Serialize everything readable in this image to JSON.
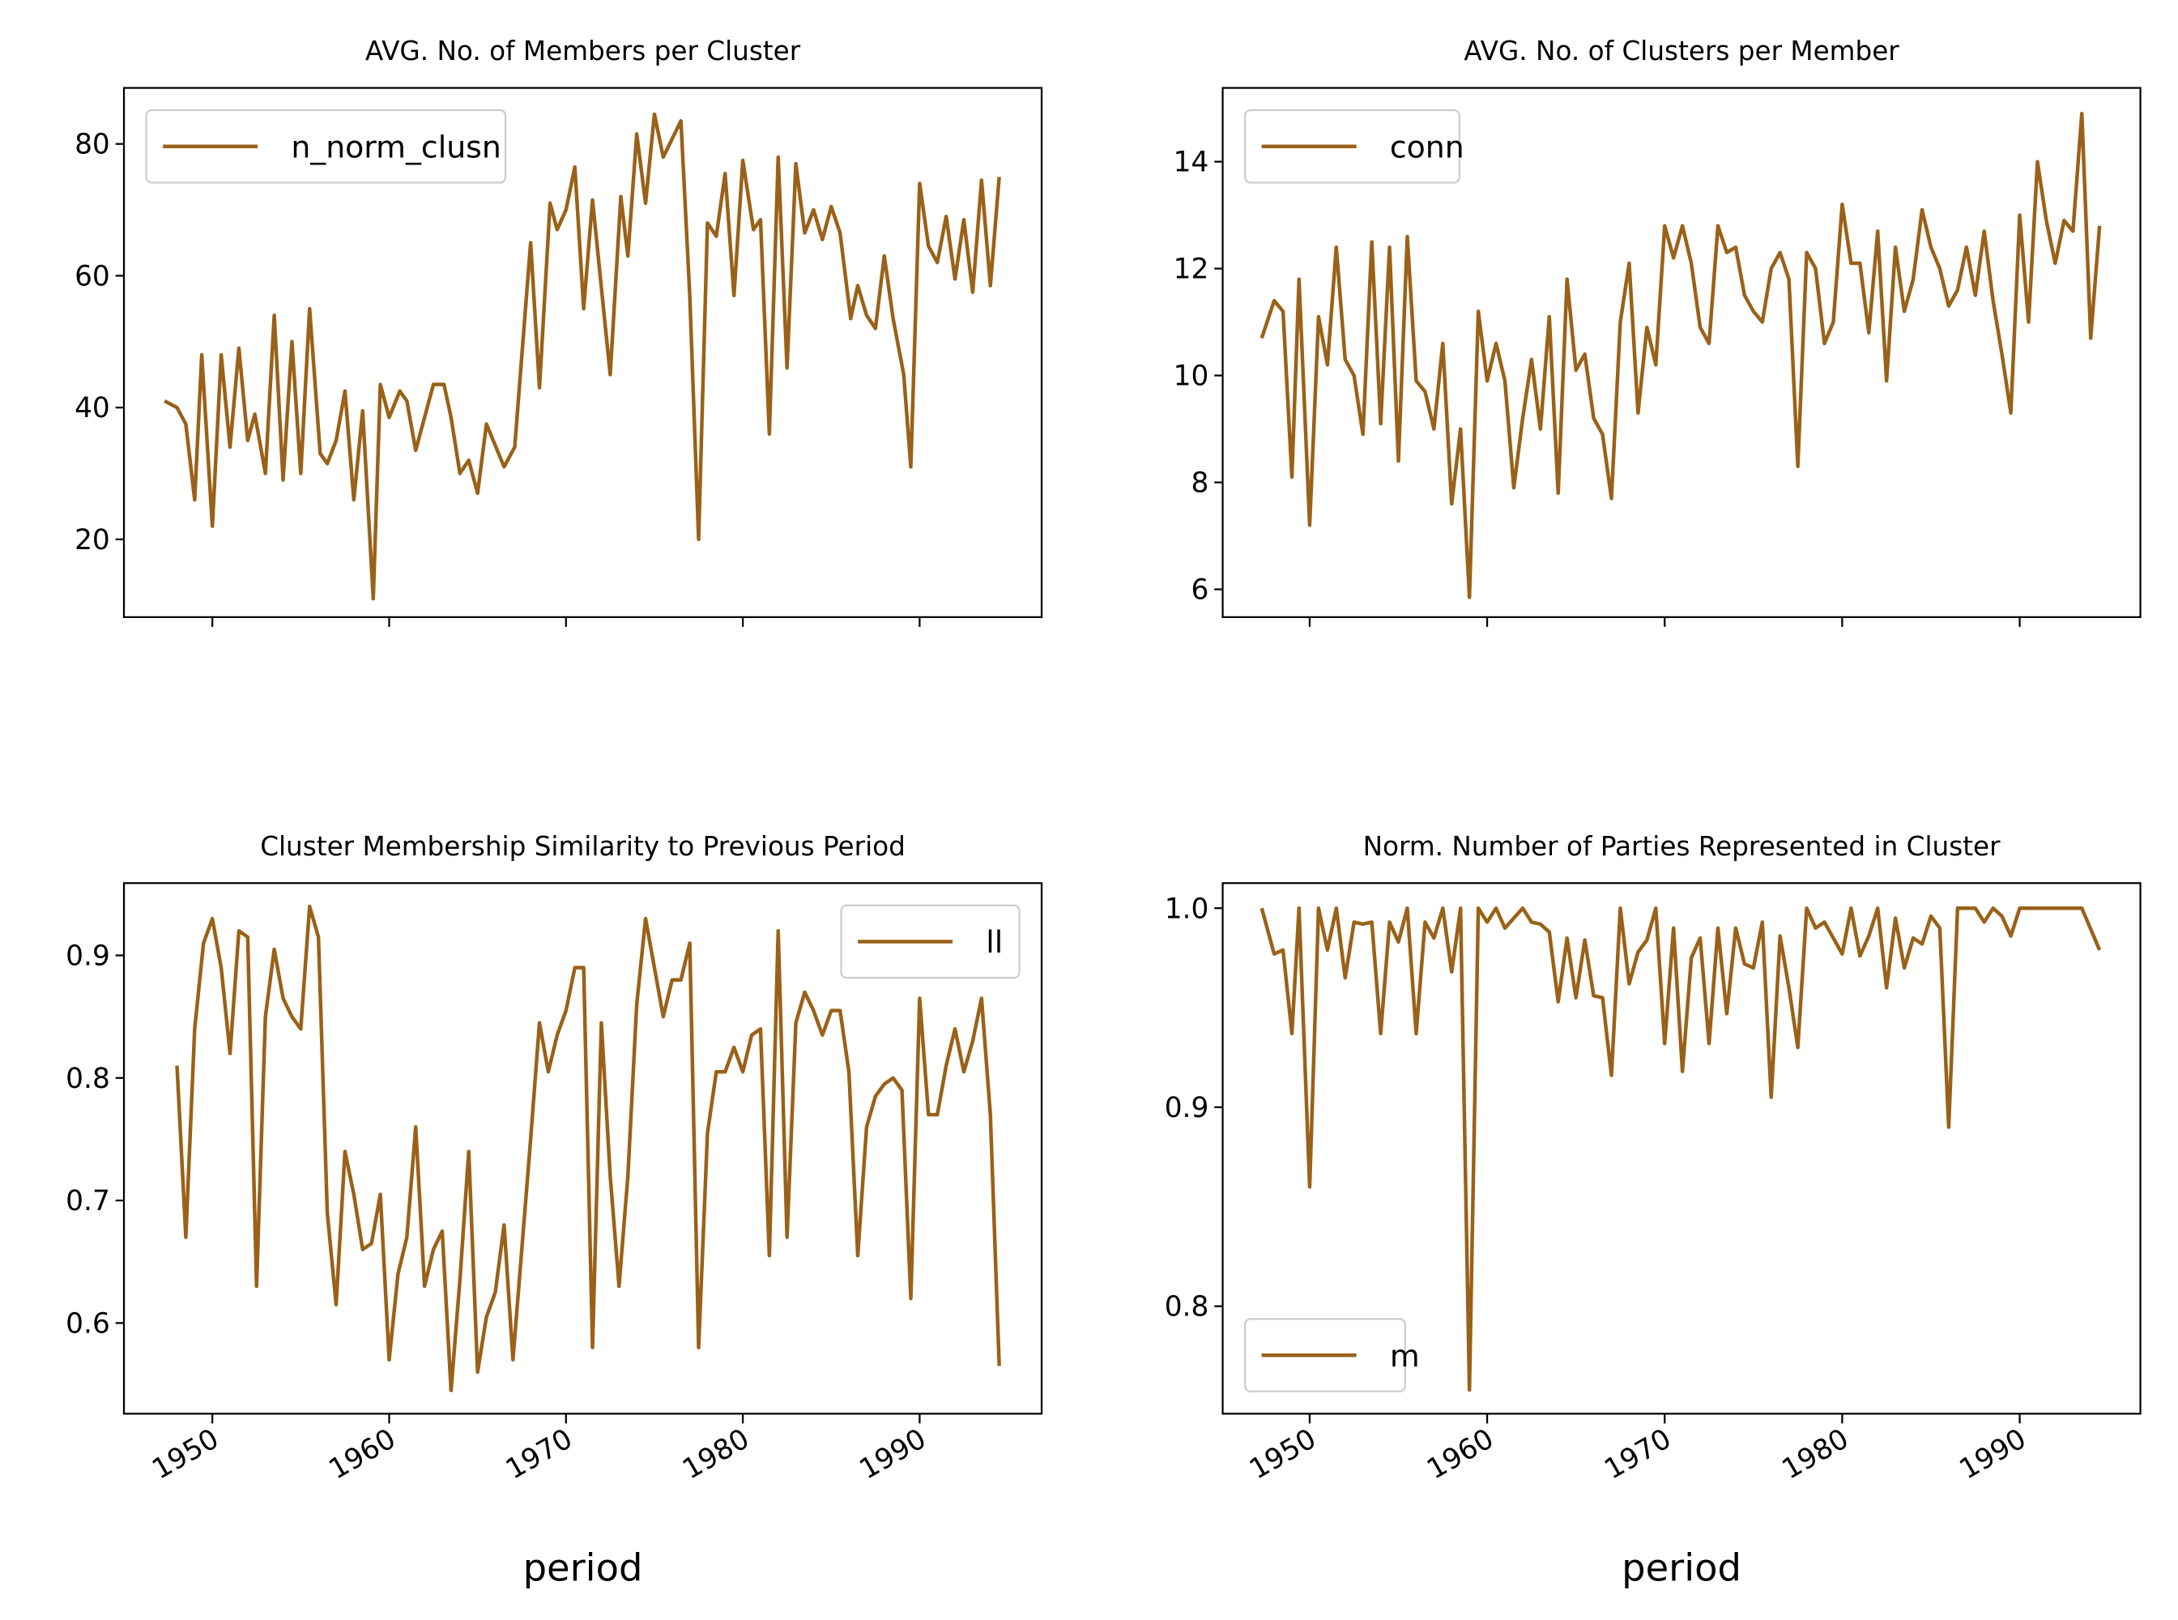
{
  "chart_data": [
    {
      "type": "line",
      "title": "AVG. No. of Members per Cluster",
      "x": [
        1947.3,
        1948.0,
        1948.5,
        1949.0,
        1949.4,
        1950.0,
        1950.5,
        1951.0,
        1951.5,
        1952.0,
        1952.4,
        1953.0,
        1953.5,
        1954.0,
        1954.5,
        1955.0,
        1955.5,
        1956.1,
        1956.5,
        1957.0,
        1957.5,
        1958.0,
        1958.5,
        1959.1,
        1959.5,
        1960.0,
        1960.6,
        1961.0,
        1961.5,
        1962.5,
        1963.1,
        1963.5,
        1964.0,
        1964.5,
        1965.0,
        1965.5,
        1966.5,
        1967.1,
        1968.0,
        1968.5,
        1969.1,
        1969.5,
        1970.0,
        1970.5,
        1971.0,
        1971.5,
        1972.5,
        1973.1,
        1973.5,
        1974.0,
        1974.5,
        1975.0,
        1975.5,
        1976.5,
        1977.0,
        1977.5,
        1978.0,
        1978.5,
        1979.0,
        1979.5,
        1980.0,
        1980.6,
        1981.0,
        1981.5,
        1982.0,
        1982.5,
        1983.0,
        1983.5,
        1984.0,
        1984.5,
        1985.0,
        1985.5,
        1986.1,
        1986.5,
        1987.0,
        1987.5,
        1988.0,
        1988.5,
        1989.1,
        1989.5,
        1990.0,
        1990.5,
        1991.0,
        1991.5,
        1992.0,
        1992.5,
        1993.0,
        1993.5,
        1994.0,
        1994.5
      ],
      "series": [
        {
          "name": "n_norm_clusn",
          "color": "#9a6118",
          "values": [
            41,
            40,
            37.5,
            26,
            48,
            22,
            48,
            34,
            49,
            35,
            39,
            30,
            54,
            29,
            50,
            30,
            55,
            33,
            31.5,
            35,
            42.5,
            26,
            39.5,
            11,
            43.5,
            38.5,
            42.5,
            41,
            33.5,
            43.5,
            43.5,
            38.5,
            30,
            32,
            27,
            37.5,
            31,
            34,
            65,
            43,
            71,
            67,
            70,
            76.5,
            55,
            71.5,
            45,
            72,
            63,
            81.5,
            71,
            84.5,
            78,
            83.5,
            57,
            20,
            68,
            66,
            75.5,
            57,
            77.5,
            67,
            68.5,
            36,
            78,
            46,
            77,
            66.5,
            70,
            65.5,
            70.5,
            66.5,
            53.5,
            58.5,
            54,
            52,
            63,
            53.5,
            45,
            31,
            74,
            64.5,
            62,
            69,
            59.5,
            68.5,
            57.5,
            74.5,
            58.5,
            75
          ]
        }
      ],
      "xlim": [
        1945.0,
        1996.9
      ],
      "ylim": [
        8.2,
        88.5
      ],
      "xticks": [
        1950,
        1960,
        1970,
        1980,
        1990
      ],
      "yticks": [
        20,
        40,
        60,
        80
      ],
      "show_xtick_labels": false,
      "legend": "upper left"
    },
    {
      "type": "line",
      "title": "AVG. No. of Clusters per Member",
      "x": [
        1947.3,
        1948.0,
        1948.5,
        1949.0,
        1949.4,
        1950.0,
        1950.5,
        1951.0,
        1951.5,
        1952.0,
        1952.5,
        1953.0,
        1953.5,
        1954.0,
        1954.5,
        1955.0,
        1955.5,
        1956.0,
        1956.5,
        1957.0,
        1957.5,
        1958.0,
        1958.5,
        1959.0,
        1959.5,
        1960.0,
        1960.5,
        1961.0,
        1961.5,
        1962.0,
        1962.5,
        1963.0,
        1963.5,
        1964.0,
        1964.5,
        1965.0,
        1965.5,
        1966.0,
        1966.5,
        1967.0,
        1967.5,
        1968.0,
        1968.5,
        1969.0,
        1969.5,
        1970.0,
        1970.5,
        1971.0,
        1971.5,
        1972.0,
        1972.5,
        1973.0,
        1973.5,
        1974.0,
        1974.5,
        1975.0,
        1975.5,
        1976.0,
        1976.5,
        1977.0,
        1977.5,
        1978.0,
        1978.5,
        1979.0,
        1979.5,
        1980.0,
        1980.5,
        1981.0,
        1981.5,
        1982.0,
        1982.5,
        1983.0,
        1983.5,
        1984.0,
        1984.5,
        1985.0,
        1985.5,
        1986.0,
        1986.5,
        1987.0,
        1987.5,
        1988.0,
        1988.5,
        1989.0,
        1989.5,
        1990.0,
        1990.5,
        1991.0,
        1991.5,
        1992.0,
        1992.5,
        1993.0,
        1993.5,
        1994.0,
        1994.5
      ],
      "series": [
        {
          "name": "conn",
          "color": "#9a6118",
          "values": [
            10.7,
            11.4,
            11.2,
            8.1,
            11.8,
            7.2,
            11.1,
            10.2,
            12.4,
            10.3,
            10.0,
            8.9,
            12.5,
            9.1,
            12.4,
            8.4,
            12.6,
            9.9,
            9.7,
            9.0,
            10.6,
            7.6,
            9.0,
            5.85,
            11.2,
            9.9,
            10.6,
            9.9,
            7.9,
            9.2,
            10.3,
            9.0,
            11.1,
            7.8,
            11.8,
            10.1,
            10.4,
            9.2,
            8.9,
            7.7,
            11.0,
            12.1,
            9.3,
            10.9,
            10.2,
            12.8,
            12.2,
            12.8,
            12.1,
            10.9,
            10.6,
            12.8,
            12.3,
            12.4,
            11.5,
            11.2,
            11.0,
            12.0,
            12.3,
            11.8,
            8.3,
            12.3,
            12.0,
            10.6,
            11.0,
            13.2,
            12.1,
            12.1,
            10.8,
            12.7,
            9.9,
            12.4,
            11.2,
            11.8,
            13.1,
            12.4,
            12.0,
            11.3,
            11.6,
            12.4,
            11.5,
            12.7,
            11.4,
            10.4,
            9.3,
            13.0,
            11.0,
            14.0,
            12.9,
            12.1,
            12.9,
            12.7,
            14.9,
            10.7,
            12.8
          ]
        }
      ],
      "xlim": [
        1945.1,
        1996.8
      ],
      "ylim": [
        5.48,
        15.38
      ],
      "xticks": [
        1950,
        1960,
        1970,
        1980,
        1990
      ],
      "yticks": [
        6,
        8,
        10,
        12,
        14
      ],
      "show_xtick_labels": false,
      "legend": "upper left"
    },
    {
      "type": "line",
      "title": "Cluster Membership Similarity to Previous Period",
      "x_label": "period",
      "x": [
        1948.0,
        1948.5,
        1949.0,
        1949.5,
        1950.0,
        1950.5,
        1951.0,
        1951.5,
        1952.0,
        1952.5,
        1953.0,
        1953.5,
        1954.0,
        1954.5,
        1955.0,
        1955.5,
        1956.0,
        1956.5,
        1957.0,
        1957.5,
        1958.0,
        1958.5,
        1959.0,
        1959.5,
        1960.0,
        1960.5,
        1961.0,
        1961.5,
        1962.0,
        1962.5,
        1963.0,
        1963.5,
        1964.0,
        1964.5,
        1965.0,
        1965.5,
        1966.0,
        1966.5,
        1967.0,
        1967.5,
        1968.0,
        1968.5,
        1969.0,
        1969.5,
        1970.0,
        1970.5,
        1971.0,
        1971.5,
        1972.0,
        1972.5,
        1973.0,
        1973.5,
        1974.0,
        1974.5,
        1975.0,
        1975.5,
        1976.0,
        1976.5,
        1977.0,
        1977.5,
        1978.0,
        1978.5,
        1979.0,
        1979.5,
        1980.0,
        1980.5,
        1981.0,
        1981.5,
        1982.0,
        1982.5,
        1983.0,
        1983.5,
        1984.0,
        1984.5,
        1985.0,
        1985.5,
        1986.0,
        1986.5,
        1987.0,
        1987.5,
        1988.0,
        1988.5,
        1989.0,
        1989.5,
        1990.0,
        1990.5,
        1991.0,
        1991.5,
        1992.0,
        1992.5,
        1993.0,
        1993.5,
        1994.0,
        1994.5
      ],
      "series": [
        {
          "name": "ll",
          "color": "#9a6118",
          "values": [
            0.81,
            0.67,
            0.84,
            0.91,
            0.93,
            0.89,
            0.82,
            0.92,
            0.915,
            0.63,
            0.85,
            0.905,
            0.865,
            0.85,
            0.84,
            0.94,
            0.915,
            0.69,
            0.615,
            0.74,
            0.705,
            0.66,
            0.665,
            0.705,
            0.57,
            0.64,
            0.67,
            0.76,
            0.63,
            0.66,
            0.675,
            0.545,
            0.635,
            0.74,
            0.56,
            0.605,
            0.625,
            0.68,
            0.57,
            0.66,
            0.75,
            0.845,
            0.805,
            0.835,
            0.855,
            0.89,
            0.89,
            0.58,
            0.845,
            0.72,
            0.63,
            0.72,
            0.86,
            0.93,
            0.89,
            0.85,
            0.88,
            0.88,
            0.91,
            0.58,
            0.755,
            0.805,
            0.805,
            0.825,
            0.805,
            0.835,
            0.84,
            0.655,
            0.92,
            0.67,
            0.845,
            0.87,
            0.855,
            0.835,
            0.855,
            0.855,
            0.805,
            0.655,
            0.76,
            0.785,
            0.795,
            0.8,
            0.79,
            0.62,
            0.865,
            0.77,
            0.77,
            0.81,
            0.84,
            0.805,
            0.83,
            0.865,
            0.77,
            0.565
          ]
        }
      ],
      "xlim": [
        1945.0,
        1996.9
      ],
      "ylim": [
        0.526,
        0.959
      ],
      "xticks": [
        1950,
        1960,
        1970,
        1980,
        1990
      ],
      "yticks": [
        0.6,
        0.7,
        0.8,
        0.9
      ],
      "show_xtick_labels": true,
      "legend": "upper right"
    },
    {
      "type": "line",
      "title": "Norm. Number of Parties Represented in Cluster",
      "x_label": "period",
      "x": [
        1947.3,
        1948.0,
        1948.5,
        1949.0,
        1949.4,
        1950.0,
        1950.5,
        1951.0,
        1951.5,
        1952.0,
        1952.5,
        1953.0,
        1953.5,
        1954.0,
        1954.5,
        1955.0,
        1955.5,
        1956.0,
        1956.5,
        1957.0,
        1957.5,
        1958.0,
        1958.5,
        1959.0,
        1959.5,
        1960.0,
        1960.5,
        1961.0,
        1962.0,
        1962.5,
        1963.0,
        1963.5,
        1964.0,
        1964.5,
        1965.0,
        1965.5,
        1966.0,
        1966.5,
        1967.0,
        1967.5,
        1968.0,
        1968.5,
        1969.0,
        1969.5,
        1970.0,
        1970.5,
        1971.0,
        1971.5,
        1972.0,
        1972.5,
        1973.0,
        1973.5,
        1974.0,
        1974.5,
        1975.0,
        1975.5,
        1976.0,
        1976.5,
        1977.0,
        1977.5,
        1978.0,
        1978.5,
        1979.0,
        1979.5,
        1980.0,
        1980.5,
        1981.0,
        1981.5,
        1982.0,
        1982.5,
        1983.0,
        1983.5,
        1984.0,
        1984.5,
        1985.0,
        1985.5,
        1986.0,
        1986.5,
        1987.0,
        1987.5,
        1988.0,
        1988.5,
        1989.0,
        1989.5,
        1990.0,
        1990.5,
        1991.0,
        1992.0,
        1993.0,
        1993.5,
        1994.5
      ],
      "series": [
        {
          "name": "m",
          "color": "#9a6118",
          "values": [
            1.0,
            0.977,
            0.979,
            0.937,
            1.0,
            0.86,
            1.0,
            0.979,
            1.0,
            0.965,
            0.993,
            0.992,
            0.993,
            0.937,
            0.993,
            0.983,
            1.0,
            0.937,
            0.993,
            0.985,
            1.0,
            0.968,
            1.0,
            0.758,
            1.0,
            0.993,
            1.0,
            0.99,
            1.0,
            0.993,
            0.992,
            0.988,
            0.953,
            0.985,
            0.955,
            0.984,
            0.956,
            0.955,
            0.916,
            1.0,
            0.962,
            0.978,
            0.984,
            1.0,
            0.932,
            0.99,
            0.918,
            0.975,
            0.985,
            0.932,
            0.99,
            0.947,
            0.99,
            0.972,
            0.97,
            0.993,
            0.905,
            0.986,
            0.96,
            0.93,
            1.0,
            0.99,
            0.993,
            0.985,
            0.977,
            1.0,
            0.976,
            0.986,
            1.0,
            0.96,
            0.995,
            0.97,
            0.985,
            0.982,
            0.996,
            0.99,
            0.89,
            1.0,
            1.0,
            1.0,
            0.993,
            1.0,
            0.996,
            0.986,
            1.0,
            1.0,
            1.0,
            1.0,
            1.0,
            1.0,
            0.979
          ]
        }
      ],
      "xlim": [
        1945.1,
        1996.8
      ],
      "ylim": [
        0.746,
        1.0126
      ],
      "xticks": [
        1950,
        1960,
        1970,
        1980,
        1990
      ],
      "yticks": [
        0.8,
        0.9,
        {
          "value": 1,
          "label": "1.0"
        }
      ],
      "show_xtick_labels": true,
      "legend": "lower left"
    }
  ]
}
